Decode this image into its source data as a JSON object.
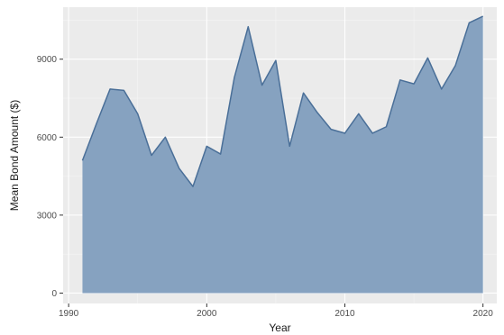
{
  "chart_data": {
    "type": "area",
    "title": "",
    "xlabel": "Year",
    "ylabel": "Mean Bond Amount ($)",
    "xlim": [
      1989.6,
      2021.0
    ],
    "ylim": [
      -400,
      11000
    ],
    "x_ticks": [
      1990,
      2000,
      2010,
      2020
    ],
    "y_ticks": [
      0,
      3000,
      6000,
      9000
    ],
    "x_tick_labels": [
      "1990",
      "2000",
      "2010",
      "2020"
    ],
    "y_tick_labels": [
      "0",
      "3000",
      "6000",
      "9000"
    ],
    "grid": true,
    "legend": "none",
    "colors": {
      "panel_background": "#ebebeb",
      "grid_major": "#ffffff",
      "area_fill": "#86a2c0",
      "area_line": "#4a6f98"
    },
    "series": [
      {
        "x": [
          1991,
          1992,
          1993,
          1994,
          1995,
          1996,
          1997,
          1998,
          1999,
          2000,
          2001,
          2002,
          2003,
          2004,
          2005,
          2006,
          2007,
          2008,
          2009,
          2010,
          2011,
          2012,
          2013,
          2014,
          2015,
          2016,
          2017,
          2018,
          2019,
          2020
        ],
        "values": [
          5100,
          6500,
          7850,
          7800,
          6900,
          5300,
          6000,
          4800,
          4100,
          5650,
          5350,
          8300,
          10250,
          8000,
          8950,
          5650,
          7700,
          6950,
          6300,
          6150,
          6900,
          6150,
          6400,
          8200,
          8050,
          9050,
          7850,
          8750,
          10400,
          10650
        ]
      }
    ]
  }
}
